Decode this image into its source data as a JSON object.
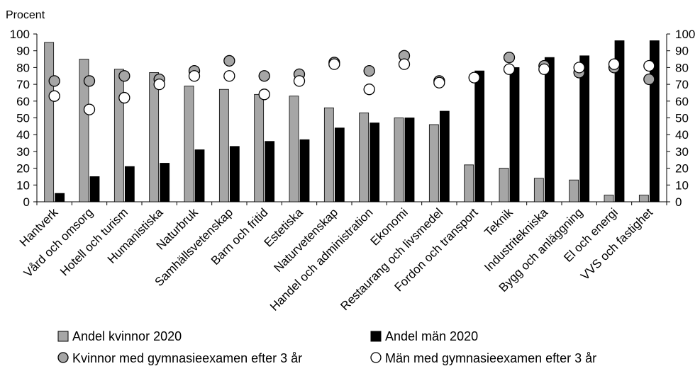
{
  "chart_data": {
    "type": "bar",
    "ylabel": "Procent",
    "ylim": [
      0,
      100
    ],
    "yticks": [
      0,
      10,
      20,
      30,
      40,
      50,
      60,
      70,
      80,
      90,
      100
    ],
    "secondary_axis": true,
    "grid": false,
    "legend_position": "bottom",
    "categories": [
      "Hantverk",
      "Vård och omsorg",
      "Hotell och turism",
      "Humanistiska",
      "Naturbruk",
      "Samhällsvetenskap",
      "Barn och fritid",
      "Estetiska",
      "Naturvetenskap",
      "Handel och administration",
      "Ekonomi",
      "Restaurang och livsmedel",
      "Fordon och transport",
      "Teknik",
      "Industritekniska",
      "Bygg och anläggning",
      "El och energi",
      "VVS och fastighet"
    ],
    "series": [
      {
        "name": "Andel kvinnor 2020",
        "type": "bar",
        "color": "#a6a6a6",
        "values": [
          95,
          85,
          79,
          77,
          69,
          67,
          64,
          63,
          56,
          53,
          50,
          46,
          22,
          20,
          14,
          13,
          4,
          4
        ]
      },
      {
        "name": "Andel män 2020",
        "type": "bar",
        "color": "#000000",
        "values": [
          5,
          15,
          21,
          23,
          31,
          33,
          36,
          37,
          44,
          47,
          50,
          54,
          78,
          80,
          86,
          87,
          96,
          96
        ]
      },
      {
        "name": "Kvinnor med gymnasieexamen efter 3 år",
        "type": "marker",
        "color": "#a6a6a6",
        "values": [
          72,
          72,
          75,
          73,
          78,
          84,
          75,
          76,
          83,
          78,
          87,
          72,
          null,
          86,
          81,
          77,
          80,
          73
        ]
      },
      {
        "name": "Män med gymnasieexamen efter 3 år",
        "type": "marker",
        "color": "#ffffff",
        "values": [
          63,
          55,
          62,
          70,
          75,
          75,
          64,
          72,
          82,
          67,
          82,
          71,
          74,
          79,
          79,
          80,
          82,
          81
        ]
      }
    ]
  }
}
